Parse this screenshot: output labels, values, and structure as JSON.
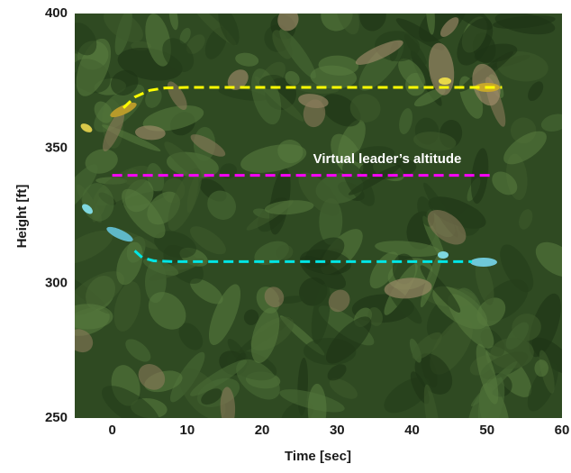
{
  "chart_data": {
    "type": "line",
    "x_label": "Time [sec]",
    "y_label": "Height [ft]",
    "annotation": "Virtual leader’s altitude",
    "xlim": [
      -5,
      60
    ],
    "xticks": [
      0,
      10,
      20,
      30,
      40,
      50,
      60
    ],
    "ylim": [
      250,
      400
    ],
    "yticks": [
      250,
      300,
      350,
      400
    ],
    "grid": false,
    "series": [
      {
        "color": "#ffff00",
        "x": [
          1.5,
          3,
          5,
          7,
          10,
          20,
          30,
          40,
          50,
          52
        ],
        "values": [
          365,
          369,
          371.5,
          372.4,
          372.6,
          372.6,
          372.6,
          372.6,
          372.6,
          372.6
        ]
      },
      {
        "color": "#ff00ff",
        "x": [
          0,
          10,
          20,
          30,
          40,
          50.5
        ],
        "values": [
          340,
          340,
          340,
          340,
          340,
          340
        ]
      },
      {
        "color": "#00e5e5",
        "x": [
          3,
          4,
          5.5,
          8,
          20,
          30,
          40,
          48
        ],
        "values": [
          312,
          309.5,
          308.3,
          308,
          308,
          308,
          308,
          308
        ]
      }
    ]
  }
}
